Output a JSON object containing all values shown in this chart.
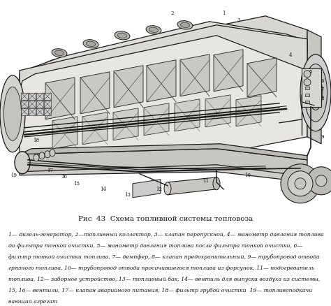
{
  "title": "Рис  43  Схема топливной системы тепловоза",
  "caption_lines": [
    "1— дизель-генератор, 2—топливный коллектор, 3— клапан перепускной, 4— манометр давления топлива",
    "до фильтра тонкой очистки, 5— манометр давления топлива после фильтра тонкой очистки, 6—",
    "фильтр тонкой очистки топлива, 7— демпфер, 8— клапан предохранительный, 9— трубопровод отвода",
    "грязного топлива, 10— трубопровод отвода просочившегося топлива из форсунок, 11— подогреватель",
    "топлива, 12— заборное устройство, 13— топливный бак, 14— вентиль для выпуска воздуха из системы,",
    "15, 16— вентили, 17— клапан аварийного питания, 18— фильтр грубой очистки  19— топливоподкачи",
    "вающий агрегат"
  ],
  "bg_color": "#ffffff",
  "text_color": "#111111",
  "title_fontsize": 7.5,
  "caption_fontsize": 5.6
}
